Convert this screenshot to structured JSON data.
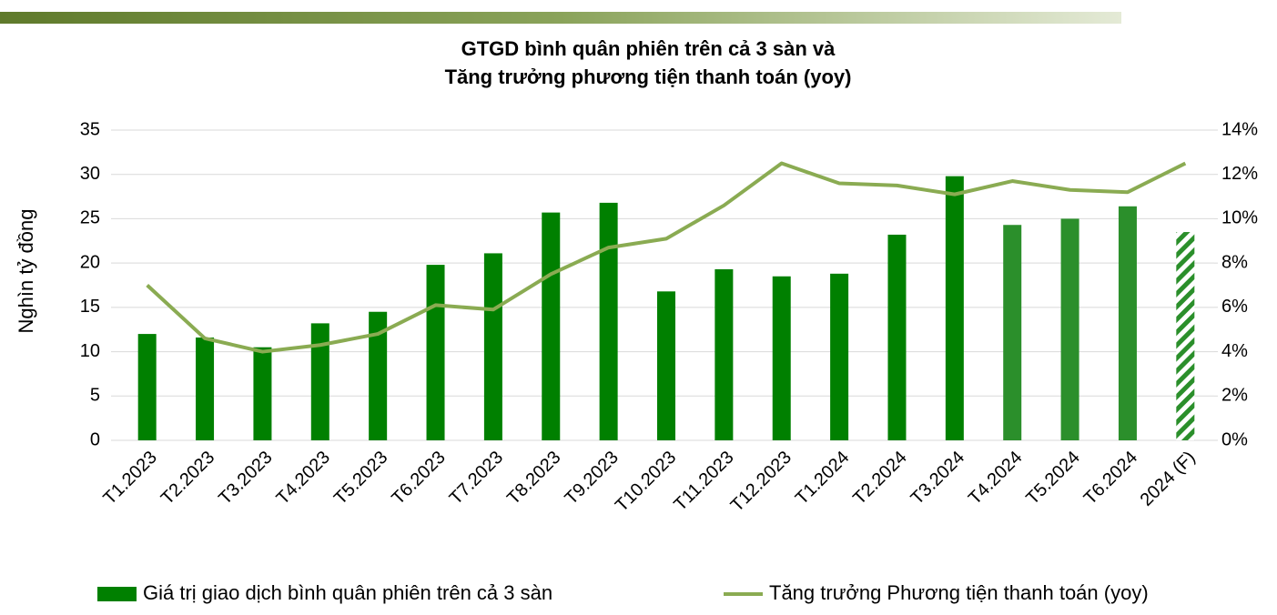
{
  "chart_data": {
    "type": "bar",
    "title": [
      "GTGD bình quân phiên trên cả 3 sàn và",
      "Tăng trưởng phương tiện thanh toán (yoy)"
    ],
    "y_label": "Nghìn tỷ đồng",
    "categories": [
      "T1.2023",
      "T2.2023",
      "T3.2023",
      "T4.2023",
      "T5.2023",
      "T6.2023",
      "T7.2023",
      "T8.2023",
      "T9.2023",
      "T10.2023",
      "T11.2023",
      "T12.2023",
      "T1.2024",
      "T2.2024",
      "T3.2024",
      "T4.2024",
      "T5.2024",
      "T6.2024",
      "2024 (F)"
    ],
    "series": [
      {
        "name": "Giá trị giao dịch bình quân phiên trên cả 3 sàn",
        "type": "bar",
        "color": "#008000",
        "values": [
          12.0,
          11.6,
          10.5,
          13.2,
          14.5,
          19.8,
          21.1,
          25.7,
          26.8,
          16.8,
          19.3,
          18.5,
          18.8,
          23.2,
          29.8,
          24.3,
          25.0,
          26.4,
          23.5
        ],
        "colors": [
          "#008000",
          "#008000",
          "#008000",
          "#008000",
          "#008000",
          "#008000",
          "#008000",
          "#008000",
          "#008000",
          "#008000",
          "#008000",
          "#008000",
          "#008000",
          "#008000",
          "#008000",
          "#2b8f2b",
          "#2b8f2b",
          "#2b8f2b",
          "#2b8f2b"
        ],
        "patterns": [
          "solid",
          "solid",
          "solid",
          "solid",
          "solid",
          "solid",
          "solid",
          "solid",
          "solid",
          "solid",
          "solid",
          "solid",
          "solid",
          "solid",
          "solid",
          "solid",
          "solid",
          "solid",
          "hatched"
        ]
      },
      {
        "name": "Tăng trưởng Phương tiện thanh toán (yoy)",
        "type": "line",
        "axis": "y2",
        "color": "#8aab52",
        "values": [
          7.0,
          4.6,
          4.0,
          4.3,
          4.8,
          6.1,
          5.9,
          7.5,
          8.7,
          9.1,
          10.6,
          12.5,
          11.6,
          11.5,
          11.1,
          11.7,
          11.3,
          11.2,
          12.5
        ]
      }
    ],
    "ylim": [
      0,
      35
    ],
    "yticks": [
      0,
      5,
      10,
      15,
      20,
      25,
      30,
      35
    ],
    "y2lim": [
      0,
      14
    ],
    "y2ticks": [
      {
        "value": 0,
        "label": "0%"
      },
      {
        "value": 2,
        "label": "2%"
      },
      {
        "value": 4,
        "label": "4%"
      },
      {
        "value": 6,
        "label": "6%"
      },
      {
        "value": 8,
        "label": "8%"
      },
      {
        "value": 10,
        "label": "10%"
      },
      {
        "value": 12,
        "label": "12%"
      },
      {
        "value": 14,
        "label": "14%"
      }
    ],
    "grid": true,
    "legend": "bottom"
  }
}
